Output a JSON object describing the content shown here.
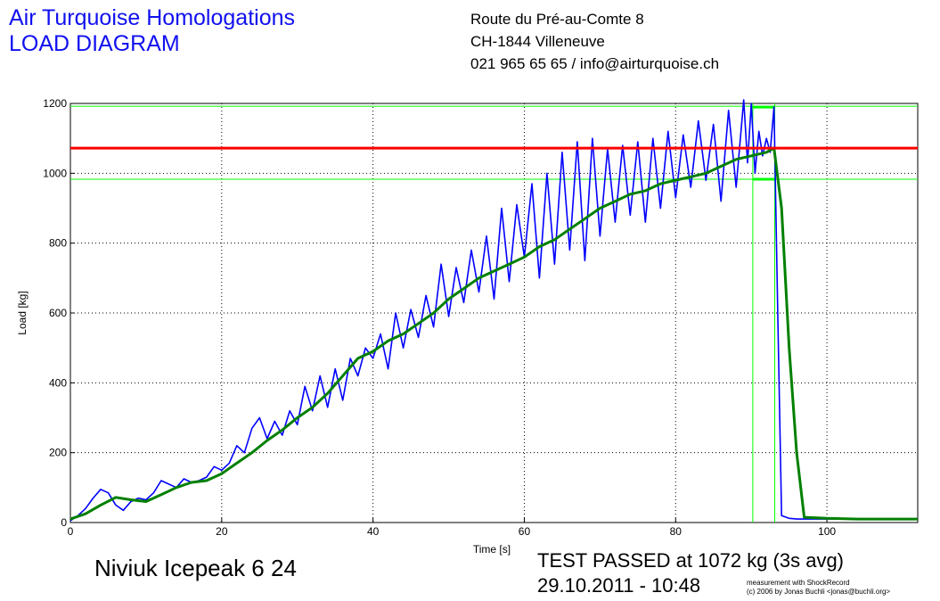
{
  "header": {
    "company_line1": "Air Turquoise Homologations",
    "company_line2": "LOAD DIAGRAM",
    "address_line1": "Route du Pré-au-Comte 8",
    "address_line2": "CH-1844 Villeneuve",
    "address_line3": "021 965 65 65 / info@airturquoise.ch"
  },
  "footer": {
    "product": "Niviuk Icepeak 6 24",
    "result_line1": "TEST PASSED at 1072 kg (3s avg)",
    "result_line2": "29.10.2011 - 10:48",
    "credit_line1": "measurement with ShockRecord",
    "credit_line2": "(c) 2006 by Jonas Buchli <jonas@buchli.org>"
  },
  "chart_data": {
    "type": "line",
    "xlabel": "Time [s]",
    "ylabel": "Load [kg]",
    "xlim": [
      0,
      112
    ],
    "ylim": [
      0,
      1200
    ],
    "xticks": [
      0,
      20,
      40,
      60,
      80,
      100
    ],
    "yticks": [
      0,
      200,
      400,
      600,
      800,
      1000,
      1200
    ],
    "grid": true,
    "colors": {
      "raw": "#0000ff",
      "avg": "#008000",
      "limit": "#ff0000",
      "band": "#00ff00"
    },
    "limit_load": 1072,
    "band": {
      "lower": 983,
      "upper": 1192,
      "x_start": 90.2,
      "x_end": 93.1
    },
    "series": [
      {
        "key": "raw",
        "x": [
          0,
          1,
          2,
          3,
          4,
          5,
          6,
          7,
          8,
          9,
          10,
          11,
          12,
          13,
          14,
          15,
          16,
          17,
          18,
          19,
          20,
          21,
          22,
          23,
          24,
          25,
          26,
          27,
          28,
          29,
          30,
          31,
          32,
          33,
          34,
          35,
          36,
          37,
          38,
          39,
          40,
          41,
          42,
          43,
          44,
          45,
          46,
          47,
          48,
          49,
          50,
          51,
          52,
          53,
          54,
          55,
          56,
          57,
          58,
          59,
          60,
          61,
          62,
          63,
          64,
          65,
          66,
          67,
          68,
          69,
          70,
          71,
          72,
          73,
          74,
          75,
          76,
          77,
          78,
          79,
          80,
          81,
          82,
          83,
          84,
          85,
          86,
          87,
          88,
          89,
          89.5,
          90,
          90.5,
          91,
          91.5,
          92,
          92.5,
          93,
          93.5,
          94,
          95,
          96,
          98,
          100,
          104,
          108,
          112
        ],
        "y": [
          5,
          20,
          40,
          70,
          95,
          85,
          50,
          35,
          60,
          70,
          65,
          85,
          120,
          110,
          100,
          125,
          115,
          120,
          130,
          160,
          150,
          170,
          220,
          200,
          270,
          300,
          240,
          290,
          250,
          320,
          280,
          390,
          320,
          420,
          330,
          440,
          350,
          470,
          420,
          500,
          470,
          540,
          440,
          600,
          500,
          610,
          530,
          650,
          560,
          740,
          590,
          730,
          630,
          780,
          660,
          820,
          640,
          900,
          690,
          910,
          760,
          970,
          700,
          1000,
          740,
          1060,
          780,
          1090,
          750,
          1100,
          820,
          1070,
          860,
          1080,
          880,
          1090,
          860,
          1100,
          900,
          1120,
          930,
          1110,
          960,
          1150,
          980,
          1140,
          920,
          1180,
          960,
          1210,
          1030,
          1200,
          1000,
          1120,
          1050,
          1100,
          1060,
          1190,
          600,
          20,
          12,
          10,
          10,
          10,
          10,
          10,
          10
        ]
      },
      {
        "key": "avg",
        "x": [
          0,
          2,
          4,
          6,
          8,
          10,
          12,
          14,
          16,
          18,
          20,
          22,
          24,
          26,
          28,
          30,
          32,
          34,
          36,
          38,
          40,
          42,
          44,
          46,
          48,
          50,
          52,
          54,
          56,
          58,
          60,
          62,
          64,
          66,
          68,
          70,
          72,
          74,
          76,
          78,
          80,
          82,
          84,
          86,
          88,
          90,
          92,
          93,
          94,
          95,
          96,
          97,
          100,
          104,
          108,
          112
        ],
        "y": [
          10,
          25,
          50,
          72,
          65,
          60,
          80,
          100,
          115,
          120,
          140,
          170,
          200,
          235,
          265,
          300,
          330,
          370,
          420,
          470,
          490,
          520,
          540,
          570,
          600,
          640,
          670,
          700,
          720,
          740,
          760,
          790,
          810,
          840,
          870,
          900,
          920,
          940,
          950,
          970,
          980,
          990,
          1000,
          1020,
          1040,
          1050,
          1060,
          1072,
          900,
          500,
          200,
          15,
          12,
          10,
          10,
          10
        ]
      }
    ]
  }
}
